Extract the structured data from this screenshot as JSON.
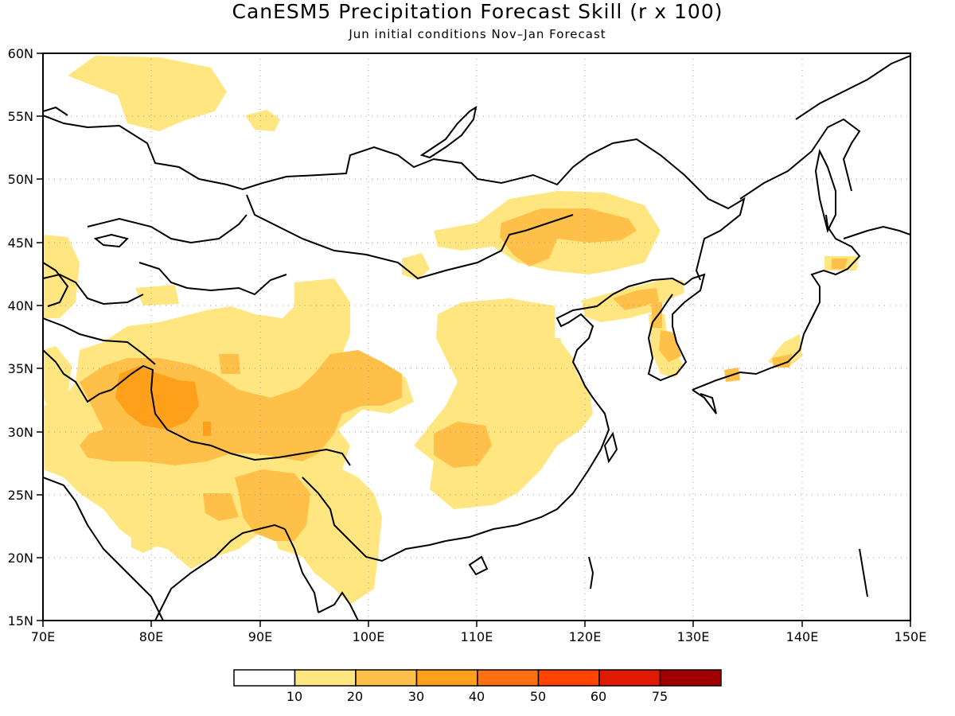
{
  "title": "CanESM5 Precipitation Forecast Skill (r x 100)",
  "subtitle": "Jun initial conditions  Nov–Jan Forecast",
  "map": {
    "lon_range": [
      70,
      150
    ],
    "lat_range": [
      15,
      60
    ],
    "lon_labels": [
      "70E",
      "80E",
      "90E",
      "100E",
      "110E",
      "120E",
      "130E",
      "140E",
      "150E"
    ],
    "lat_labels": [
      "15N",
      "20N",
      "25N",
      "30N",
      "35N",
      "40N",
      "45N",
      "50N",
      "55N",
      "60N"
    ],
    "gridlines": "dotted"
  },
  "colorbar": {
    "labels": [
      "10",
      "20",
      "30",
      "40",
      "50",
      "60",
      "75"
    ],
    "colors": [
      "#ffffff",
      "#ffe680",
      "#ffc04a",
      "#ffa01a",
      "#ff7010",
      "#ff4400",
      "#e01a00",
      "#a00000"
    ]
  }
}
